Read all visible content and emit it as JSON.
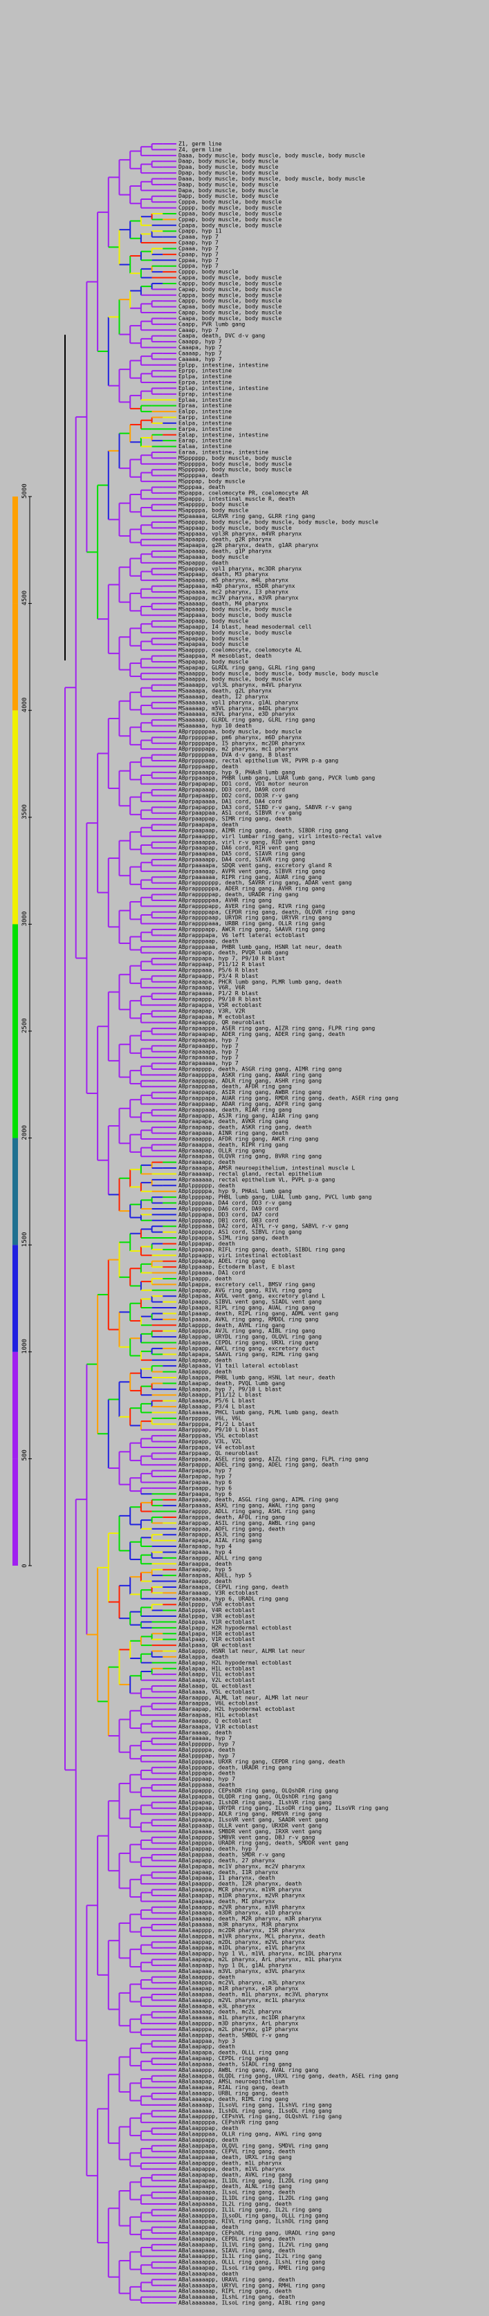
{
  "colorbar": {
    "ticks": [
      "0",
      "500",
      "1000",
      "1500",
      "2000",
      "2500",
      "3000",
      "3500",
      "4000",
      "4500",
      "5000"
    ],
    "bands": [
      "#a020f0",
      "#a020f0",
      "#2020e0",
      "#1f7090",
      "#00e000",
      "#00e000",
      "#f0f000",
      "#f0f000",
      "#ffa000",
      "#ffa000",
      "#ff4000"
    ]
  },
  "colors": {
    "tree": "#a020f0",
    "blue": "#2020e0",
    "green": "#00e000",
    "yellow": "#f0f000",
    "orange": "#ffa000",
    "red": "#ff2000"
  },
  "tree": {
    "leaves": [
      "Z1, germ line",
      "Z4, germ line",
      "Daaa, body muscle, body muscle, body muscle, body muscle",
      "Daap, body muscle, body muscle",
      "Dpaa, body muscle, body muscle",
      "Dpap, body muscle, body muscle",
      "Daaa, body muscle, body muscle, body muscle, body muscle",
      "Daap, body muscle, body muscle",
      "Dapa, body muscle, body muscle",
      "Dapp, body muscle, body muscle",
      "Cpppa, body muscle, body muscle",
      "Cpppp, body muscle, body muscle",
      "Cppaa, body muscle, body muscle",
      "Cppap, body muscle, body muscle",
      "Cpapa, body muscle, body muscle",
      "Cpapp, hyp 11",
      "Cpaaa, hyp 7",
      "Cpaap, hyp 7",
      "Cpaaa, hyp 7",
      "Cpaap, hyp 7",
      "Cppaa, hyp 7",
      "Cpppa, hyp 7",
      "Cpppp, body muscle",
      "Cappa, body muscle, body muscle",
      "Cappp, body muscle, body muscle",
      "Capap, body muscle, body muscle",
      "Cappa, body muscle, body muscle",
      "Cappp, body muscle, body muscle",
      "Capaa, body muscle, body muscle",
      "Capap, body muscle, body muscle",
      "Caapa, body muscle, body muscle",
      "Caapp, PVR lumb gang",
      "Caaap, hyp 7",
      "Caapa, death, DVC d-v gang",
      "Caaapp, hyp 7",
      "Caaapa, hyp 7",
      "Caaaap, hyp 7",
      "Caaaaa, hyp 7",
      "Eplpp, intestine, intestine",
      "Eprpp, intestine",
      "Eplpa, intestine",
      "Eprpa, intestine",
      "Eplap, intestine, intestine",
      "Eprap, intestine",
      "Eplaa, intestine",
      "Epraa, intestine",
      "Ealpp, intestine",
      "Earpp, intestine",
      "Ealpa, intestine",
      "Earpa, intestine",
      "Ealap, intestine, intestine",
      "Earap, intestine",
      "Ealaa, intestine",
      "Earaa, intestine, intestine",
      "MSpppppp, body muscle, body muscle",
      "MSpppppa, body muscle, body muscle",
      "MSppppap, body muscle, body muscle",
      "MSppppaa, death",
      "MSpppap, body muscle",
      "MSpppaa, death",
      "MSpappa, coelomocyte PR, coelomocyte AR",
      "MSpappp, intestinal muscle R, death",
      "MSappppp, body muscle",
      "MSappppa, body muscle",
      "MSpaaaaa, GLRVR ring gang, GLRR ring gang",
      "MSapppap, body muscle, body muscle, body muscle, body muscle",
      "MSappaap, body muscle, body muscle",
      "MSappaaa, vpl3R pharynx, m4VR pharynx",
      "MSapaapp, death, g2R pharynx",
      "MSapaapa, g2R pharynx, death, g1AR pharynx",
      "MSapaaap, death, g1P pharynx",
      "MSapaaaa, body muscle",
      "MSapappp, death",
      "MSpappap, vpl1 pharynx, mc3DR pharynx",
      "MSappaap, death, M3 pharynx",
      "MSapaaap, m5 pharynx, m4L pharynx",
      "MSappaaa, m4D pharynx, m5DR pharynx",
      "MSapaaaa, mc2 pharynx, I3 pharynx",
      "MSapappa, mc3V pharynx, m3VR pharynx",
      "MSaaaaap, death, M4 pharynx",
      "MSapaaap, body muscle, body muscle",
      "MSappaaa, body muscle, body muscle",
      "MSappaap, body muscle",
      "MSapaapp, I4 blast, head mesodermal cell",
      "MSappapp, body muscle, body muscle",
      "MSapapap, body muscle",
      "MSapapaa, body muscle",
      "MSaapppp, coelomocyte, coelomocyte AL",
      "MSaappaa, M mesoblast, death",
      "MSapapap, body muscle",
      "MSapapap, GLRDL ring gang, GLRL ring gang",
      "MSaaappp, body muscle, body muscle, body muscle, body muscle",
      "MSaaappa, body muscle, body muscle",
      "MSaaaapp, vpl3L pharynx, m4VL pharynx",
      "MSaaaapa, death, g2L pharynx",
      "MSaaaaap, death, I2 pharynx",
      "MSaaaaaa, vpl1 pharynx, g1AL pharynx",
      "MSaaaaap, m5VL pharynx, m4DL pharynx",
      "MSaaaaaa, m3VL pharynx, e3D pharynx",
      "MSaaaaap, GLRDL ring gang, GLRL ring gang",
      "MSaaaaaa, hyp 10 death",
      "ABprpppppaa, body muscle, body muscle",
      "ABprpppppap, pm6 pharynx, m6D pharynx",
      "ABprppppapa, I5 pharynx, mc2DR pharynx",
      "ABprppppapp, m2 pharynx, mc1 pharynx",
      "ABprpppppaa, DVA d-v gang, B blast",
      "ABprppppaap, rectal epithelium VR, PVPR p-a gang",
      "ABprpppaapp, death",
      "ABprppaaapp, hyp 9, PHAsR lumb gang",
      "ABprppaaapa, PHBR lumb gang, LUAR lumb gang, PVCR lumb gang",
      "ABprpapapap, DD1 cord, VD1 motor neuron",
      "ABprpapaaap, DD3 cord, DA9R cord",
      "ABprpapaapp, DD2 cord, DD3R r-v gang",
      "ABprpapaaaa, DA1 cord, DA4 cord",
      "ABprpapappp, DA3 cord, SIBD r-v gang, SABVR r-v gang",
      "ABprpaappaa, AS1 cord, SIBVR r-v gang",
      "ABprpaappap, SIMR ring gang, death",
      "ABprpaapapa, death",
      "ABprpaapaap, AIMR ring gang, death, SIBDR ring gang",
      "ABprpaaappp, virl lumbar ring gang, virl intesto-rectal valve",
      "ABprpaaappa, virl r-v gang, RID vent gang",
      "ABprpaaapap, DA6 cord, RIH vent gang",
      "ABprpaaapaa, DA5 cord, SIAVR ring gang",
      "ABprpaaaapp, DA4 cord, SIAVR ring gang",
      "ABprpaaaapa, SDQR vent gang, excretory gland R",
      "ABprpaaaaap, AVPR vent gang, SIBVR ring gang",
      "ABprpaaaaaa, RIPR ring gang, AUAR ring gang",
      "ABprappppppp, death, SAVRR ring gang, ADAR vent gang",
      "ABprappppppa, ADER ring gang, AVHR ring gang",
      "ABprapppppap, death, URADR ring gang",
      "ABprapppppaa, AVHR ring gang",
      "ABprappppapp, AVER ring gang, RIVR ring gang",
      "ABprappppapa, CEPDR ring gang, death, OLQVR ring gang",
      "ABprappppaap, URYDR ring gang, URYVR ring gang",
      "ABprappppaaa, URBR ring gang, OLLR ring gang",
      "ABprapppapp, AWCR ring gang, SAAVR ring gang",
      "ABprapppapa, V6 left lateral ectoblast",
      "ABprapppaap, death",
      "ABprapppaaa, PHBR lumb gang, HSNR lat neur, death",
      "ABprappapp, death, PVQR lumb gang",
      "ABprappapa, hyp 7, P9/10 R blast",
      "ABprappaap, P11/12 R blast",
      "ABprappaaa, P5/6 R blast",
      "ABprapaapp, P3/4 R blast",
      "ABprapaapa, PHCR lumb gang, PLMR lumb gang, death",
      "ABprapaaap, V6R, V6R",
      "ABprapaaaa, P1/2 R blast",
      "ABprapappp, P9/10 R blast",
      "ABprapappa, V5R ectoblast",
      "ABprapapap, V3R, V2R",
      "ABprapapaa, M ectoblast",
      "ABprapaappp, QR neuroblast",
      "ABprapaappa, ASER ring gang, AIZR ring gang, FLPR ring gang",
      "ABprapaapap, ADER ring gang, ADER ring gang, death",
      "ABprapaapaa, hyp 7",
      "ABprapaaapp, hyp 7",
      "ABprapaaapa, hyp 7",
      "ABprapaaaap, hyp 7",
      "ABprapaaaaa, hyp 7",
      "ABpraapppp, death, ASGR ring gang, AIMR ring gang",
      "ABpraappppa, ASKR ring gang, AWAR ring gang",
      "ABpraapppap, ADLR ring gang, ASHR ring gang",
      "ABpraapppaa, death, AFDR ring gang",
      "ABpraappapp, ASIR ring gang, AWBR ring gang",
      "ABpraappapa, AUAR ring gang, RMDR ring gang, death, ASER ring gang",
      "ABpraappaap, ADAR ring gang, ADFR ring gang",
      "ABpraappaaa, death, RIAR ring gang",
      "ABpraapapp, ASJR ring gang, AIAR ring gang",
      "ABpraapapa, death, AVKR ring gang",
      "ABpraapaap, death, ASKR ring gang, death",
      "ABpraapaaa, AINR ring gang, death",
      "ABpraaappp, AFDR ring gang, AWCR ring gang",
      "ABpraaappa, death, RIPR ring gang",
      "ABpraaapap, OLLR ring gang",
      "ABpraaapaa, OLQVR ring gang, BVRR ring gang",
      "ABpraaaapp, death",
      "ABpraaaapa, AMSR neuroepithelium, intestinal muscle L",
      "ABpraaaaap, rectal gland, rectal epithelium",
      "ABpraaaaaa, rectal epithelium VL, PVPL p-a gang",
      "ABplpppppp, death",
      "ABplpppppa, hyp 9, PHAsL lumb gang",
      "ABplppppap, PHBL lumb gang, LUAL lumb gang, PVCL lumb gang",
      "ABplppppaa, DA4 cord, DD3 r-v gang",
      "ABplpppapp, DA6 cord, DA9 cord",
      "ABplpppapa, DD3 cord, DA7 cord",
      "ABplpppaap, DB1 cord, DB3 cord",
      "ABplpppaaa, DA2 cord, AIYL r-v gang, SABVL r-v gang",
      "ABplppappp, AS1 cord, SIBVL ring gang",
      "ABplppappa, SIML ring gang, death",
      "ABplppapap, death",
      "ABplppapaa, RIFL ring gang, death, SIBDL ring gang",
      "ABplppaapp, virL intestinal ectoblast",
      "ABplppaapa, ADEL ring gang",
      "ABplppaaap, Ectoderm blast, E blast",
      "ABplppaaaa, DA1 cord",
      "ABplpappp, death",
      "ABplpappa, excretory cell, BMSV ring gang",
      "ABplpapap, AVG ring gang, RIVL ring gang",
      "ABplpapaa, AVDL vent gang, excretory gland L",
      "ABplpaapp, SIBVL vent gang, SIADL vent gang",
      "ABplpaapa, RIPL ring gang, AUAL ring gang",
      "ABplpaaap, death, RIPL ring gang, ADML vent gang",
      "ABplpaaaa, AVKL ring gang, RMDDL ring gang",
      "ABplapppp, death, AVHL ring gang",
      "ABplapppa, AVJL ring gang, AIBL ring gang",
      "ABplappap, URYDL ring gang, OLQVL ring gang",
      "ABplappaa, CEPDL ring gang, URXL ring gang",
      "ABplapapp, AWCL ring gang, excretory duct",
      "ABplapapa, SAAVL ring gang, RIML ring gang",
      "ABplapaap, death",
      "ABplapaaa, V1 tail lateral ectoblast",
      "ABplaappp, death",
      "ABplaappa, PHBL lumb gang, HSNL lat neur, death",
      "ABplaapap, death, PVQL lumb gang",
      "ABplaapaa, hyp 7, P9/10 L blast",
      "ABplaaapp, P11/12 L blast",
      "ABplaaapa, P5/6 L blast",
      "ABplaaaap, P3/4 L blast",
      "ABplaaaaa, PHCL lumb gang, PLML lumb gang, death",
      "ABarppppp, V6L, V6L",
      "ABarppppa, P1/2 L blast",
      "ABarpppap, P9/10 L blast",
      "ABarpppaa, V5L ectoblast",
      "ABarppapp, V3L, V2L",
      "ABarppapa, V4 ectoblast",
      "ABarppaap, QL neuroblast",
      "ABarppaaa, ASEL ring gang, AIZL ring gang, FLPL ring gang",
      "ABarpappp, ADEL ring gang, ADEL ring gang, death",
      "ABarpappa, hyp 7",
      "ABarpapap, hyp 7",
      "ABarpapaa, hyp 6",
      "ABarpaapp, hyp 6",
      "ABarpaapa, hyp 6",
      "ABarpaaap, death, ASGL ring gang, AIML ring gang",
      "ABarpaaaa, ASKL ring gang, AWAL ring gang",
      "ABarapppp, ADLL ring gang, ASHL ring gang",
      "ABarapppa, death, AFDL ring gang",
      "ABarappap, ASIL ring gang, AWBL ring gang",
      "ABarappaa, ADFL ring gang, death",
      "ABarapapp, ASJL ring gang",
      "ABarapapa, AIAL ring gang",
      "ABarapaap, hyp 4",
      "ABarapaaa, hyp 4",
      "ABaraappp, ADLL ring gang",
      "ABaraappa, death",
      "ABaraapap, hyp 5",
      "ABaraapaa, ADEL, hyp 5",
      "ABaraaapp, death",
      "ABaraaapa, CEPVL ring gang, death",
      "ABaraaaap, V3R ectoblast",
      "ABaraaaaa, hyp 6, URADL ring gang",
      "ABalpppp, V5R ectoblast",
      "ABalpppa, V4R ectoblast",
      "ABalppap, V3R ectoblast",
      "ABalppaa, V1R ectoblast",
      "ABalpapp, H2R hypodermal ectoblast",
      "ABalpapa, H1R ectoblast",
      "ABalpaap, V1R ectoblast",
      "ABalpaaa, QR ectoblast",
      "ABalappp, HSNR lat neur, ALMR lat neur",
      "ABalappa, death",
      "ABalapap, H2L hypodermal ectoblast",
      "ABalapaa, H1L ectoblast",
      "ABalaapp, V1L ectoblast",
      "ABalaapa, V2L ectoblast",
      "ABalaaap, QL ectoblast",
      "ABalaaaa, V5L ectoblast",
      "ABaraappp, ALML lat neur, ALMR lat neur",
      "ABaraappa, V6L ectoblast",
      "ABaraapap, H2L hypodermal ectoblast",
      "ABaraapaa, H1L ectoblast",
      "ABaraaapp, Q ectoblast",
      "ABaraaapa, V1R ectoblast",
      "ABaraaaap, death",
      "ABaraaaaa, hyp 7",
      "ABalpppppp, hyp 7",
      "ABalpppppa, death",
      "ABalppppap, hyp 7",
      "ABalppppaa, URXR ring gang, CEPDR ring gang, death",
      "ABalpppapp, death, URADR ring gang",
      "ABalpppapa, death",
      "ABalpppaap, hyp 7",
      "ABalpppaaa, death",
      "ABalppappp, CEPshDR ring gang, OLQshDR ring gang",
      "ABalppappa, OLQDR ring gang, OLQshDR ring gang",
      "ABalppapap, ILshDR ring gang, ILshVR ring gang",
      "ABalppapaa, URYDR ring gang, ILsoDR ring gang, ILsoVR ring gang",
      "ABalppaapp, ADLR ring gang, RMDVR ring gang",
      "ABalppaapa, ILsoVR vent gang, SAADR vent gang",
      "ABalppaaap, OLLR vent gang, URXDR vent gang",
      "ABalppaaaa, SMBDR vent gang, IRXR vent gang",
      "ABalpapppp, SMBVR vent gang, DBJ r-v gang",
      "ABalpapppa, URADR ring gang, death, SMDDR vent gang",
      "ABalpappap, death, hyp 7",
      "ABalpappaa, death, SMDR r-v gang",
      "ABalpapapp, death, 27 pharynx",
      "ABalpapapa, mc1V pharynx, mc2V pharynx",
      "ABalpapaap, death, I1R pharynx",
      "ABalpapaaa, I1 pharynx, death",
      "ABalpaappp, death, I2R pharynx, death",
      "ABalpaappa, MCR pharynx, m1VR pharynx",
      "ABalpaapap, m1DR pharynx, m2VR pharynx",
      "ABalpaapaa, death, MI pharynx",
      "ABalpaaapp, m2VR pharynx, m3VR pharynx",
      "ABalpaaapa, m3DR pharynx, e1D pharynx",
      "ABalpaaaap, death, M2R pharynx, m3R pharynx",
      "ABalpaaaaa, m3R pharynx, M3R pharynx",
      "ABalaapppp, mc2DR pharynx, I5R pharynx",
      "ABalaapppa, m1VR pharynx, MCL pharynx, death",
      "ABalaappap, m2DL pharynx, m2VL pharynx",
      "ABalaappaa, m1DL pharynx, e1VL pharynx",
      "ABalaapapp, hyp 1 VL, m1VL pharynx, mc1DL pharynx",
      "ABalaapapa, m2L pharynx, ArL pharynx, m1L pharynx",
      "ABalaapaap, hyp 1 DL, g1AL pharynx",
      "ABalaapaaa, m3VL pharynx, e3VL pharynx",
      "ABalaaappp, death",
      "ABalaaappa, mc2VL pharynx, m3L pharynx",
      "ABalaaapap, m1R pharynx, e1R pharynx",
      "ABalaaapaa, death, m1L pharynx, mc3VL pharynx",
      "ABalaaaapp, m2VL pharynx, mc1L pharynx",
      "ABalaaaapa, e3L pharynx",
      "ABalaaaaap, death, mc2L pharynx",
      "ABalaaaaaa, m1L pharynx, mc1DR pharynx",
      "ABalaapppp, m3D pharynx, ArL pharynx",
      "ABalaapppa, m2L pharynx, g1P pharynx",
      "ABalaappap, death, SMBDL r-v gang",
      "ABalaappaa, hyp 3",
      "ABalaapapp, death",
      "ABalaapapa, death, OLLL ring gang",
      "ABalaapaap, CEPDL ring gang",
      "ABalaapaaa, death, SIADL ring gang",
      "ABalaaappp, AWBL ring gang, AVAL ring gang",
      "ABalaaappa, OLQDL ring gang, URXL ring gang, death, ASEL ring gang",
      "ABalaaapap, AMSL neuroepithelium",
      "ABalaaapaa, RIAL ring gang, death",
      "ABalaaaapp, URBL ring gang, death",
      "ABalaaaapa, death, RIML ring gang",
      "ABalaaaaap, ILsoVL ring gang, ILshVL ring gang",
      "ABalaaaaaa, ILshDL ring gang, ILsoDL ring gang",
      "ABalaappppp, CEPshVL ring gang, OLQshVL ring gang",
      "ABalaappppa, CEPshVR ring gang",
      "ABalaapppap, death",
      "ABalaapppaa, OLLR ring gang, AVKL ring gang",
      "ABalaappapp, death",
      "ABalaappapa, OLQVL ring gang, SMDVL ring gang",
      "ABalaappaap, CEPVL ring gang, death",
      "ABalaappaaa, death, URXL ring gang",
      "ABalaapappp, death, m1L pharynx",
      "ABalaapappa, death, m1VL pharynx",
      "ABalaapapap, death, AVKL ring gang",
      "ABalaapapaa, IL1DL ring gang, IL2DL ring gang",
      "ABalaapaapp, death, ALNL ring gang",
      "ABalaapaapa, ILsoL ring gang, death",
      "ABalaapaaap, IL1DL ring gang, IL2DL ring gang",
      "ABalaapaaaa, IL2L ring gang, death",
      "ABalaaapppp, IL1L ring gang, IL2L ring gang",
      "ABalaaapppa, ILsoDL ring gang, OLLL ring gang",
      "ABalaaappap, RIVL ring gang, ILshDL ring gang",
      "ABalaaappaa, death",
      "ABalaaapapp, CEPshDL ring gang, URADL ring gang",
      "ABalaaapapa, CEPDL ring gang, death",
      "ABalaaapaap, IL1VL ring gang, IL2VL ring gang",
      "ABalaaapaaa, SIAVL ring gang, death",
      "ABalaaaappp, IL1L ring gang, IL2L ring gang",
      "ABalaaaappa, OLLL ring gang, ILshL ring gang",
      "ABalaaaapap, ILsoL ring gang, RMEL ring gang",
      "ABalaaaapaa, death",
      "ABalaaaaapp, URAVL ring gang, death",
      "ABalaaaaapa, URYVL ring gang, RMHL ring gang",
      "ABalaaaaaap, RIPL ring gang, death",
      "ABalaaaaaaa, ILshL ring gang, death",
      "ABalaaaaaaa, ILsoL ring gang, AIBL ring gang"
    ]
  }
}
